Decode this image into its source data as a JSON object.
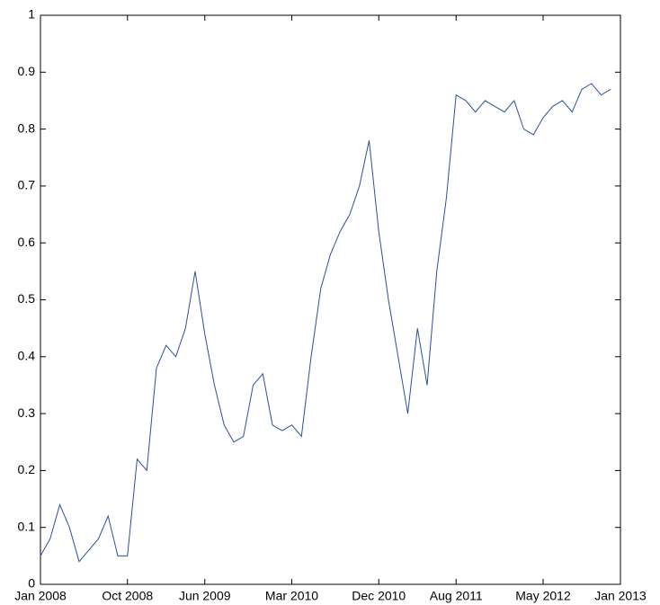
{
  "chart_data": {
    "type": "line",
    "x": [
      "2008-01",
      "2008-02",
      "2008-03",
      "2008-04",
      "2008-05",
      "2008-06",
      "2008-07",
      "2008-08",
      "2008-09",
      "2008-10",
      "2008-11",
      "2008-12",
      "2009-01",
      "2009-02",
      "2009-03",
      "2009-04",
      "2009-05",
      "2009-06",
      "2009-07",
      "2009-08",
      "2009-09",
      "2009-10",
      "2009-11",
      "2009-12",
      "2010-01",
      "2010-02",
      "2010-03",
      "2010-04",
      "2010-05",
      "2010-06",
      "2010-07",
      "2010-08",
      "2010-09",
      "2010-10",
      "2010-11",
      "2010-12",
      "2011-01",
      "2011-02",
      "2011-03",
      "2011-04",
      "2011-05",
      "2011-06",
      "2011-07",
      "2011-08",
      "2011-09",
      "2011-10",
      "2011-11",
      "2011-12",
      "2012-01",
      "2012-02",
      "2012-03",
      "2012-04",
      "2012-05",
      "2012-06",
      "2012-07",
      "2012-08",
      "2012-09",
      "2012-10",
      "2012-11",
      "2012-12"
    ],
    "series": [
      {
        "color": "#2b4fa0",
        "values": [
          0.05,
          0.08,
          0.14,
          0.1,
          0.04,
          0.06,
          0.08,
          0.12,
          0.05,
          0.05,
          0.22,
          0.2,
          0.38,
          0.42,
          0.4,
          0.45,
          0.55,
          0.44,
          0.35,
          0.28,
          0.25,
          0.26,
          0.35,
          0.37,
          0.28,
          0.27,
          0.28,
          0.26,
          0.4,
          0.52,
          0.58,
          0.62,
          0.65,
          0.7,
          0.78,
          0.62,
          0.5,
          0.4,
          0.3,
          0.45,
          0.35,
          0.55,
          0.68,
          0.86,
          0.85,
          0.83,
          0.85,
          0.84,
          0.83,
          0.85,
          0.8,
          0.79,
          0.82,
          0.84,
          0.85,
          0.83,
          0.87,
          0.88,
          0.86,
          0.87
        ]
      }
    ],
    "xlim": [
      "2008-01",
      "2013-01"
    ],
    "xticks": [
      {
        "value": "2008-01",
        "label": "Jan 2008"
      },
      {
        "value": "2008-10",
        "label": "Oct 2008"
      },
      {
        "value": "2009-06",
        "label": "Jun 2009"
      },
      {
        "value": "2010-03",
        "label": "Mar 2010"
      },
      {
        "value": "2010-12",
        "label": "Dec 2010"
      },
      {
        "value": "2011-08",
        "label": "Aug 2011"
      },
      {
        "value": "2012-05",
        "label": "May 2012"
      },
      {
        "value": "2013-01",
        "label": "Jan 2013"
      }
    ],
    "ylim": [
      0,
      1
    ],
    "yticks": [
      0,
      0.1,
      0.2,
      0.3,
      0.4,
      0.5,
      0.6,
      0.7,
      0.8,
      0.9,
      1
    ]
  }
}
